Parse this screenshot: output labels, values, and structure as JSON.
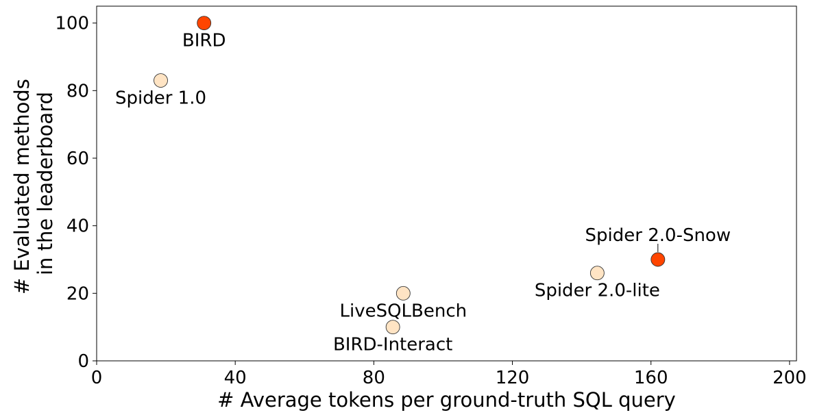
{
  "chart_data": {
    "type": "scatter",
    "xlabel": "# Average tokens per ground-truth SQL query",
    "ylabel_lines": [
      "# Evaluated methods",
      "in the leaderboard"
    ],
    "xlim": [
      0,
      202
    ],
    "ylim": [
      0,
      105
    ],
    "xticks": [
      "0",
      "40",
      "80",
      "120",
      "160",
      "200"
    ],
    "xtick_values": [
      0,
      40,
      80,
      120,
      160,
      200
    ],
    "yticks": [
      "0",
      "20",
      "40",
      "60",
      "80",
      "100"
    ],
    "ytick_values": [
      0,
      20,
      40,
      60,
      80,
      100
    ],
    "grid": false,
    "colors": {
      "highlight": "#ff4500",
      "default": "#ffe4c4",
      "edge": "#333333"
    },
    "points": [
      {
        "label": "BIRD",
        "x": 31,
        "y": 100,
        "color": "#ff4500",
        "label_pos": "below"
      },
      {
        "label": "Spider 1.0",
        "x": 18.5,
        "y": 83,
        "color": "#ffe4c4",
        "label_pos": "below"
      },
      {
        "label": "Spider 2.0-Snow",
        "x": 162,
        "y": 30,
        "color": "#ff4500",
        "label_pos": "above"
      },
      {
        "label": "Spider 2.0-lite",
        "x": 144.5,
        "y": 26,
        "color": "#ffe4c4",
        "label_pos": "below"
      },
      {
        "label": "LiveSQLBench",
        "x": 88.5,
        "y": 20,
        "color": "#ffe4c4",
        "label_pos": "below"
      },
      {
        "label": "BIRD-Interact",
        "x": 85.5,
        "y": 10,
        "color": "#ffe4c4",
        "label_pos": "below"
      }
    ]
  }
}
